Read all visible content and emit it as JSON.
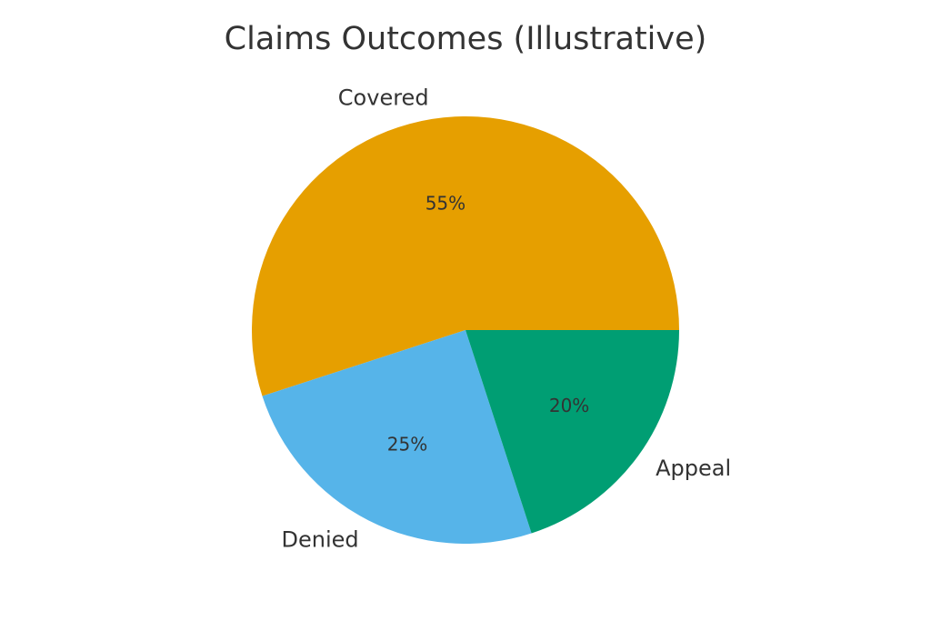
{
  "chart_data": {
    "type": "pie",
    "title": "Claims Outcomes (Illustrative)",
    "start_angle_deg": 0,
    "direction": "counterclockwise",
    "slices": [
      {
        "label": "Covered",
        "value": 55,
        "pct_label": "55%",
        "color": "#E69F00"
      },
      {
        "label": "Denied",
        "value": 25,
        "pct_label": "25%",
        "color": "#56B4E9"
      },
      {
        "label": "Appeal",
        "value": 20,
        "pct_label": "20%",
        "color": "#009E73"
      }
    ]
  }
}
